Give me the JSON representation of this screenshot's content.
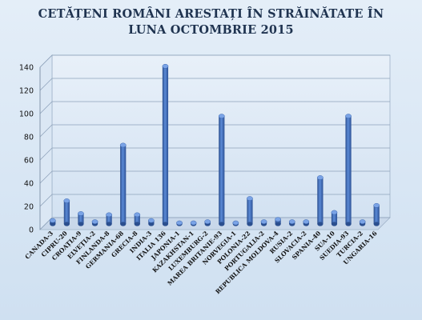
{
  "chart_data": {
    "type": "bar",
    "title_line1": "CETĂȚENI ROMÂNI ARESTAȚI ÎN STRĂINĂTATE ÎN",
    "title_line2": "LUNA OCTOMBRIE 2015",
    "categories": [
      "CANADA-3",
      "CIPRU-20",
      "CROAȚIA-9",
      "ELVEȚIA-2",
      "FINLANDA-8",
      "GERMANIA-68",
      "GRECIA-8",
      "INDIA-3",
      "ITALIA 136",
      "JAPONIA-1",
      "KAZAKHSTAN-1",
      "LUXEMBURG-2",
      "MAREA BRITANIE-93",
      "NORVEGIA-1",
      "POLONIA-22",
      "PORTUGALIA-2",
      "REPUBLICA MOLDOVA-4",
      "RUSIA-2",
      "SLOVACIA-2",
      "SPANIA-40",
      "SUA-10",
      "SUEDIA-93",
      "TURCIA-2",
      "UNGARIA-16"
    ],
    "values": [
      3,
      20,
      9,
      2,
      8,
      68,
      8,
      3,
      136,
      1,
      1,
      2,
      93,
      1,
      22,
      2,
      4,
      2,
      2,
      40,
      10,
      93,
      2,
      16
    ],
    "y_ticks": [
      "0",
      "20",
      "40",
      "60",
      "80",
      "100",
      "120",
      "140"
    ],
    "ylim": [
      0,
      140
    ],
    "bar_color": "#3f6fbf",
    "grid": true
  }
}
